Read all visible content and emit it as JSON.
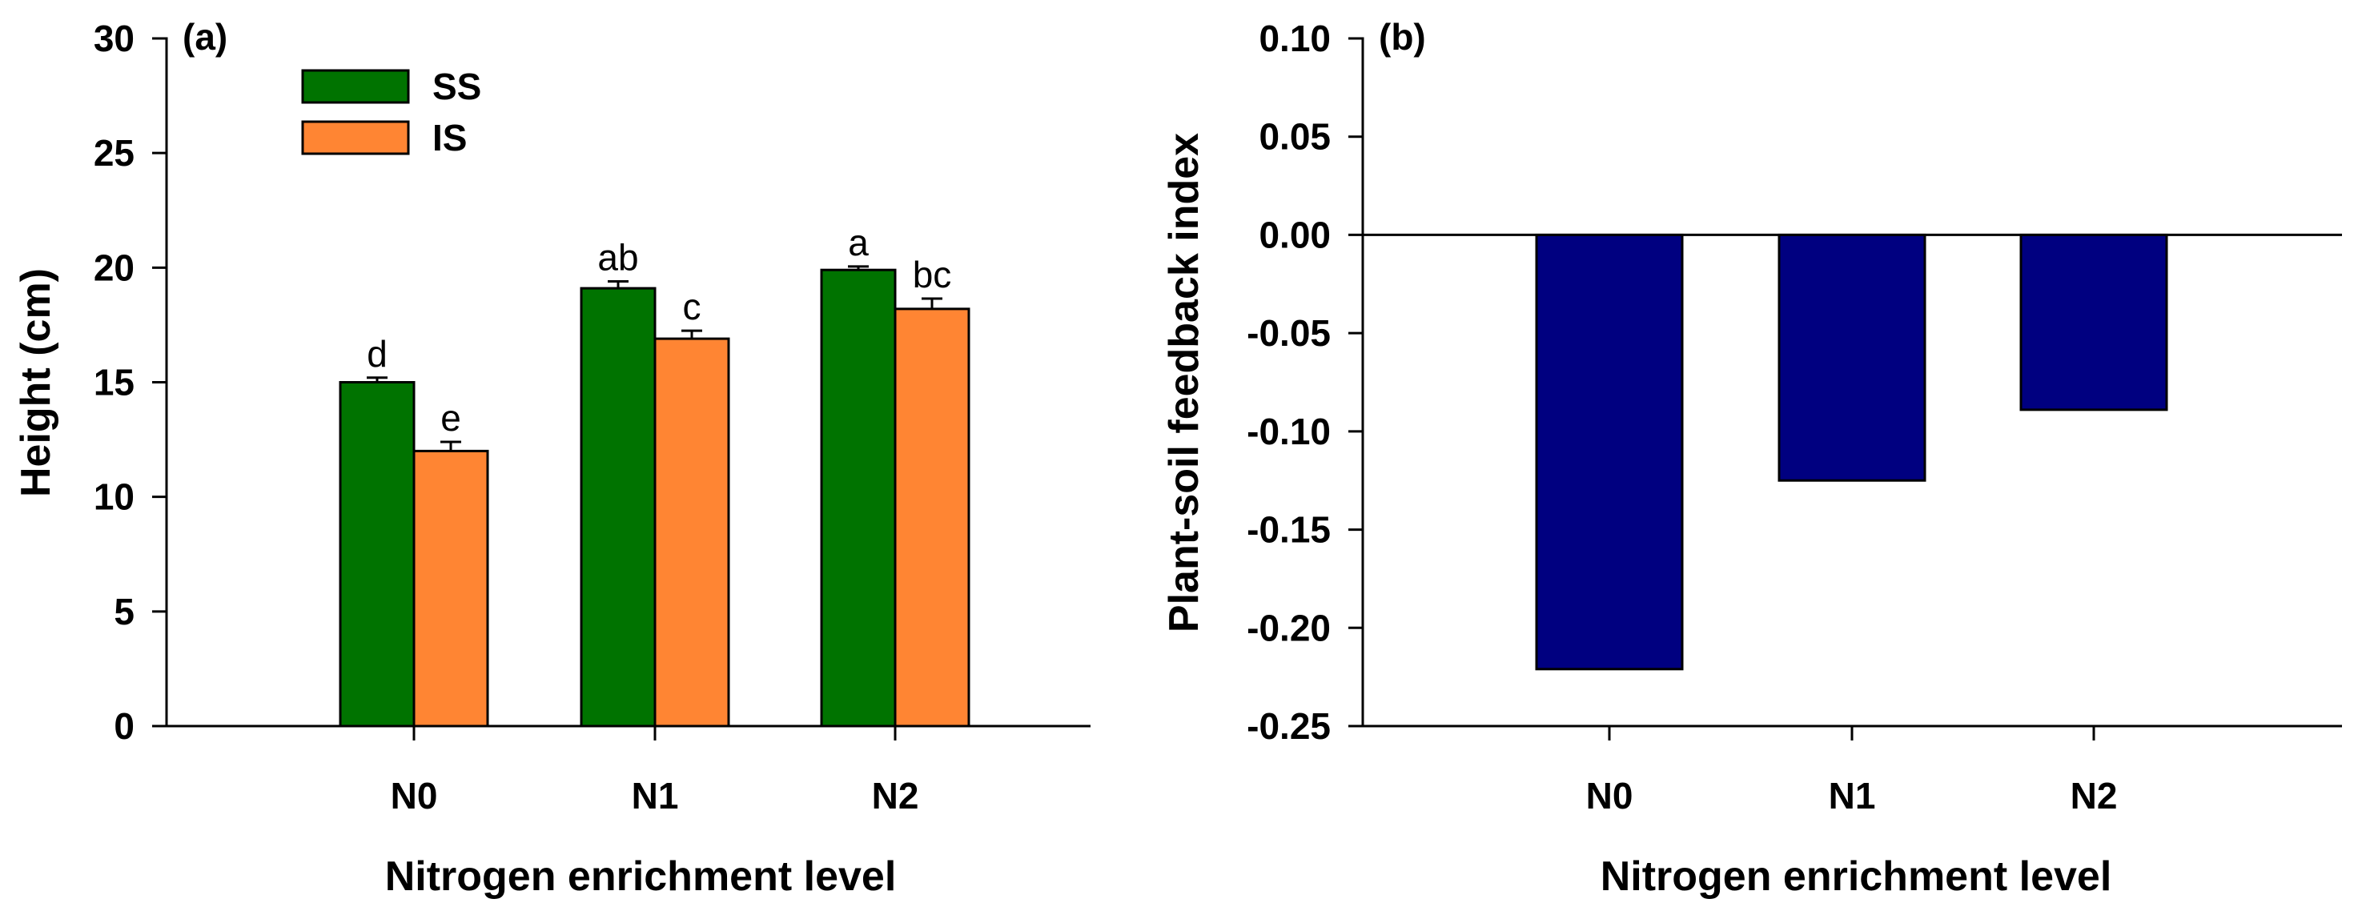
{
  "chart_data": [
    {
      "type": "bar",
      "panel_label": "(a)",
      "categories": [
        "N0",
        "N1",
        "N2"
      ],
      "series": [
        {
          "name": "SS",
          "color": "#007300",
          "values": [
            15.0,
            19.1,
            19.9
          ],
          "errors": [
            0.2,
            0.3,
            0.15
          ],
          "labels": [
            "d",
            "ab",
            "a"
          ]
        },
        {
          "name": "IS",
          "color": "#ff8533",
          "values": [
            12.0,
            16.9,
            18.2
          ],
          "errors": [
            0.4,
            0.35,
            0.45
          ],
          "labels": [
            "e",
            "c",
            "bc"
          ]
        }
      ],
      "xlabel": "Nitrogen enrichment level",
      "ylabel": "Height (cm)",
      "ylim": [
        0,
        30
      ],
      "yticks": [
        "0",
        "5",
        "10",
        "15",
        "20",
        "25",
        "30"
      ],
      "legend_position": "top-left"
    },
    {
      "type": "bar",
      "panel_label": "(b)",
      "categories": [
        "N0",
        "N1",
        "N2"
      ],
      "series": [
        {
          "name": "Plant-soil feedback index",
          "color": "#000080",
          "values": [
            -0.221,
            -0.125,
            -0.089
          ]
        }
      ],
      "xlabel": "Nitrogen enrichment level",
      "ylabel": "Plant-soil feedback index",
      "ylim": [
        -0.25,
        0.1
      ],
      "yticks": [
        "-0.25",
        "-0.20",
        "-0.15",
        "-0.10",
        "-0.05",
        "0.00",
        "0.05",
        "0.10"
      ]
    }
  ]
}
